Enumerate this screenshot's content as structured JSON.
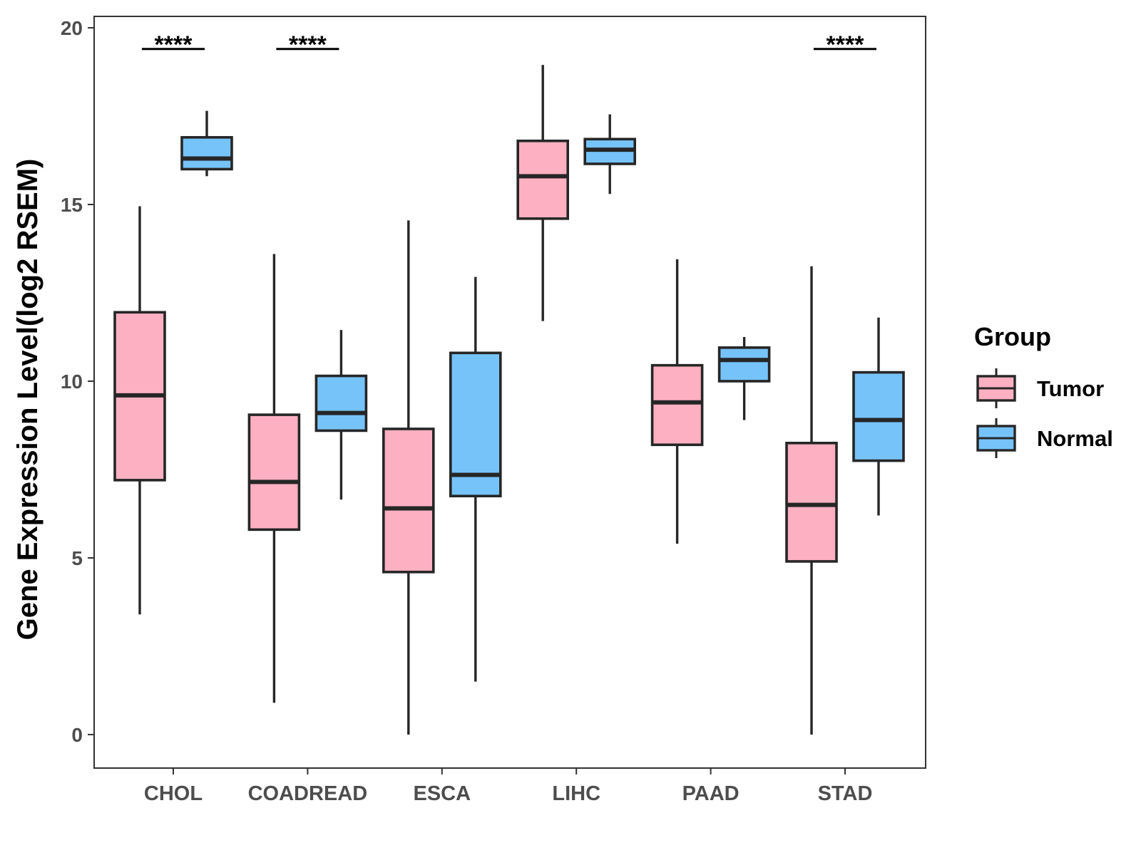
{
  "chart_data": {
    "type": "boxplot",
    "title": "",
    "xlabel": "",
    "ylabel": "Gene Expression Level(log2 RSEM)",
    "ylim": [
      -0.9,
      20.4
    ],
    "yticks": [
      0,
      5,
      10,
      15,
      20
    ],
    "ytick_labels": [
      "0",
      "5",
      "10",
      "15",
      "20"
    ],
    "grid": false,
    "categories": [
      "CHOL",
      "COADREAD",
      "ESCA",
      "LIHC",
      "PAAD",
      "STAD"
    ],
    "legend": {
      "title": "Group",
      "position": "right",
      "entries": [
        "Tumor",
        "Normal"
      ]
    },
    "series": [
      {
        "name": "Tumor",
        "color": "#fcb0c2",
        "boxes": [
          {
            "min": 3.4,
            "q1": 7.2,
            "median": 9.6,
            "q3": 11.95,
            "max": 14.95
          },
          {
            "min": 0.9,
            "q1": 5.8,
            "median": 7.15,
            "q3": 9.05,
            "max": 13.6
          },
          {
            "min": 0.0,
            "q1": 4.6,
            "median": 6.4,
            "q3": 8.65,
            "max": 14.55
          },
          {
            "min": 11.7,
            "q1": 14.6,
            "median": 15.8,
            "q3": 16.8,
            "max": 18.95
          },
          {
            "min": 5.4,
            "q1": 8.2,
            "median": 9.4,
            "q3": 10.45,
            "max": 13.45
          },
          {
            "min": 0.0,
            "q1": 4.9,
            "median": 6.5,
            "q3": 8.25,
            "max": 13.25
          }
        ]
      },
      {
        "name": "Normal",
        "color": "#76c3fa",
        "boxes": [
          {
            "min": 15.8,
            "q1": 16.0,
            "median": 16.3,
            "q3": 16.9,
            "max": 17.65
          },
          {
            "min": 6.65,
            "q1": 8.6,
            "median": 9.1,
            "q3": 10.15,
            "max": 11.45
          },
          {
            "min": 1.5,
            "q1": 6.75,
            "median": 7.35,
            "q3": 10.8,
            "max": 12.95
          },
          {
            "min": 15.3,
            "q1": 16.15,
            "median": 16.55,
            "q3": 16.85,
            "max": 17.55
          },
          {
            "min": 8.9,
            "q1": 10.0,
            "median": 10.6,
            "q3": 10.95,
            "max": 11.25
          },
          {
            "min": 6.2,
            "q1": 7.75,
            "median": 8.9,
            "q3": 10.25,
            "max": 11.8
          }
        ]
      }
    ],
    "annotations": [
      {
        "category": "CHOL",
        "text": "****",
        "y": 19.4
      },
      {
        "category": "COADREAD",
        "text": "****",
        "y": 19.4
      },
      {
        "category": "STAD",
        "text": "****",
        "y": 19.4
      }
    ]
  }
}
